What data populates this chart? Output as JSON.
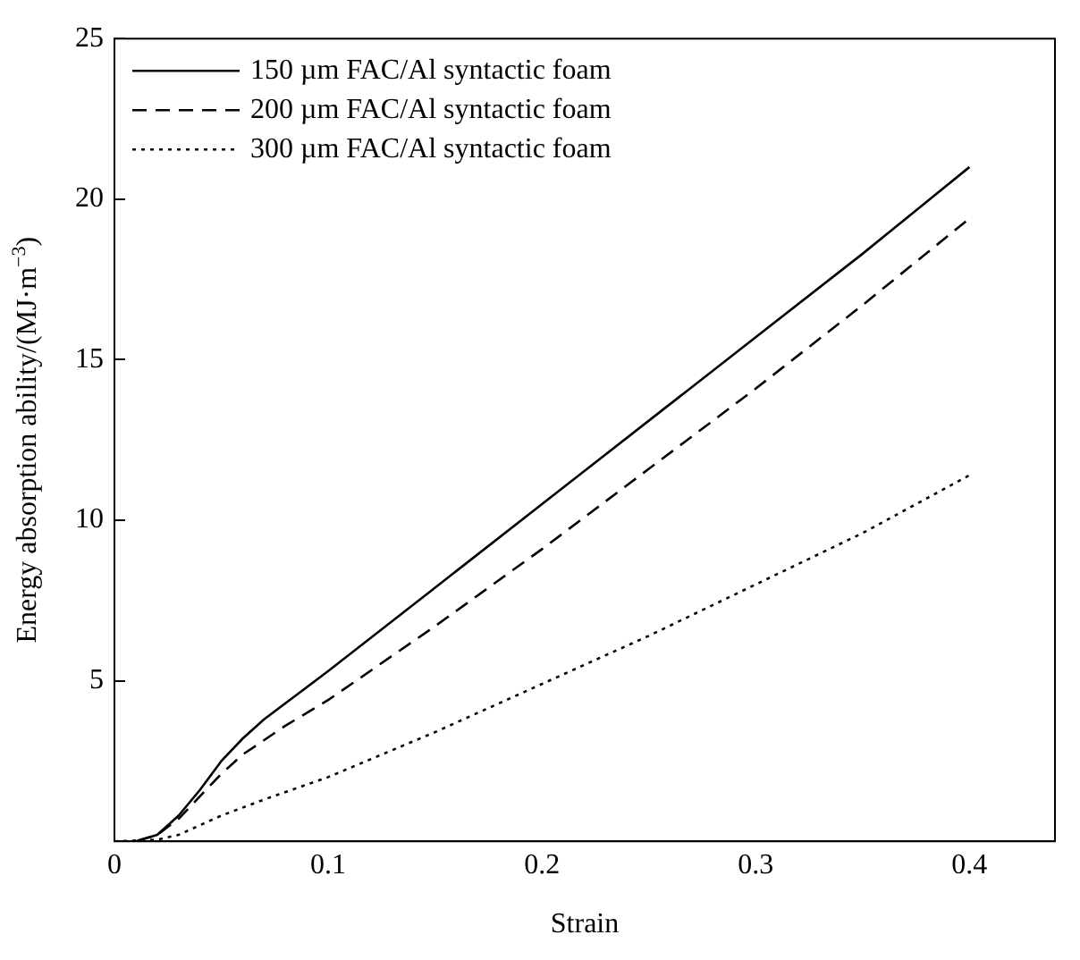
{
  "chart_data": {
    "type": "line",
    "xlabel": "Strain",
    "ylabel": "Energy absorption ability/(MJ·m$^{−3}$)",
    "xlim": [
      0,
      0.44
    ],
    "ylim": [
      0,
      25
    ],
    "xticks": [
      0,
      0.1,
      0.2,
      0.3,
      0.4
    ],
    "yticks": [
      5,
      10,
      15,
      20,
      25
    ],
    "grid": false,
    "legend": "top left",
    "marker": "none",
    "series": [
      {
        "name": "150 µm FAC/Al syntactic foam",
        "color": "#000000",
        "line_style": "solid",
        "x": [
          0,
          0.01,
          0.02,
          0.03,
          0.04,
          0.05,
          0.06,
          0.07,
          0.08,
          0.1,
          0.15,
          0.2,
          0.25,
          0.3,
          0.35,
          0.4
        ],
        "values": [
          0,
          0,
          0.2,
          0.8,
          1.6,
          2.5,
          3.2,
          3.8,
          4.3,
          5.3,
          7.9,
          10.5,
          13.1,
          15.7,
          18.3,
          21
        ]
      },
      {
        "name": "200 µm FAC/Al syntactic foam",
        "color": "#000000",
        "line_style": "dashed",
        "x": [
          0,
          0.01,
          0.02,
          0.03,
          0.04,
          0.05,
          0.06,
          0.08,
          0.1,
          0.15,
          0.2,
          0.25,
          0.3,
          0.35,
          0.4
        ],
        "values": [
          0,
          0,
          0.2,
          0.7,
          1.4,
          2.1,
          2.7,
          3.6,
          4.4,
          6.7,
          9.1,
          11.6,
          14.1,
          16.7,
          19.4
        ]
      },
      {
        "name": "300 µm FAC/Al syntactic foam",
        "color": "#000000",
        "line_style": "dotted",
        "x": [
          0,
          0.02,
          0.03,
          0.05,
          0.07,
          0.1,
          0.15,
          0.2,
          0.25,
          0.3,
          0.35,
          0.4
        ],
        "values": [
          0,
          0.05,
          0.2,
          0.8,
          1.3,
          2.0,
          3.4,
          4.9,
          6.4,
          8.0,
          9.6,
          11.4
        ]
      }
    ]
  }
}
